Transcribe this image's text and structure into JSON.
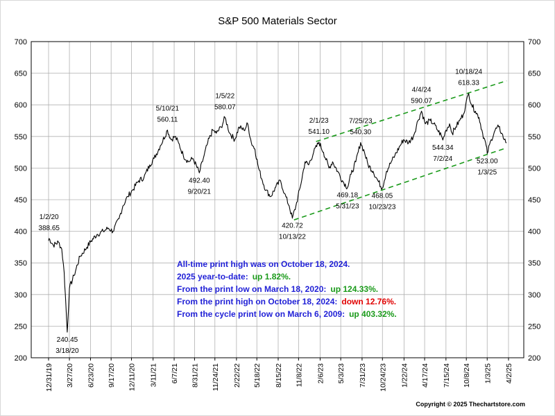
{
  "chart_data": {
    "type": "line",
    "title": "S&P 500 Materials Sector",
    "xlabel": "",
    "ylabel": "",
    "ylim": [
      200,
      700
    ],
    "grid": true,
    "y_ticks": [
      "200",
      "250",
      "300",
      "350",
      "400",
      "450",
      "500",
      "550",
      "600",
      "650",
      "700"
    ],
    "x_tick_labels": [
      "12/31/19",
      "3/27/20",
      "6/23/20",
      "9/17/20",
      "12/11/20",
      "3/11/21",
      "6/7/21",
      "8/31/21",
      "11/24/21",
      "2/22/22",
      "5/18/22",
      "8/15/22",
      "11/8/22",
      "2/6/23",
      "5/3/23",
      "7/31/23",
      "10/24/23",
      "1/22/24",
      "4/17/24",
      "7/15/24",
      "10/8/24",
      "1/3/25",
      "4/2/25"
    ],
    "series": [
      {
        "color": "#000000",
        "x": [
          "2019-12-31",
          "2020-01-02",
          "2020-01-20",
          "2020-02-10",
          "2020-02-24",
          "2020-03-05",
          "2020-03-10",
          "2020-03-18",
          "2020-03-27",
          "2020-04-15",
          "2020-05-10",
          "2020-06-08",
          "2020-06-26",
          "2020-07-20",
          "2020-08-15",
          "2020-09-05",
          "2020-09-25",
          "2020-10-20",
          "2020-11-05",
          "2020-11-25",
          "2020-12-15",
          "2021-01-10",
          "2021-02-01",
          "2021-02-25",
          "2021-03-15",
          "2021-04-10",
          "2021-05-10",
          "2021-05-25",
          "2021-06-10",
          "2021-06-25",
          "2021-07-15",
          "2021-08-05",
          "2021-08-25",
          "2021-09-20",
          "2021-10-10",
          "2021-10-25",
          "2021-11-15",
          "2021-11-30",
          "2021-12-20",
          "2022-01-05",
          "2022-01-25",
          "2022-02-15",
          "2022-03-05",
          "2022-03-25",
          "2022-04-10",
          "2022-04-25",
          "2022-05-10",
          "2022-05-25",
          "2022-06-10",
          "2022-06-25",
          "2022-07-15",
          "2022-08-05",
          "2022-08-25",
          "2022-09-10",
          "2022-09-30",
          "2022-10-13",
          "2022-10-28",
          "2022-11-15",
          "2022-12-05",
          "2022-12-20",
          "2023-01-10",
          "2023-02-01",
          "2023-02-20",
          "2023-03-15",
          "2023-03-30",
          "2023-04-20",
          "2023-05-10",
          "2023-05-31",
          "2023-06-15",
          "2023-07-05",
          "2023-07-25",
          "2023-08-10",
          "2023-08-25",
          "2023-09-15",
          "2023-10-05",
          "2023-10-23",
          "2023-11-10",
          "2023-11-30",
          "2023-12-15",
          "2024-01-05",
          "2024-01-20",
          "2024-02-10",
          "2024-03-01",
          "2024-03-20",
          "2024-04-04",
          "2024-04-20",
          "2024-05-10",
          "2024-05-25",
          "2024-06-10",
          "2024-06-25",
          "2024-07-02",
          "2024-07-15",
          "2024-07-30",
          "2024-08-10",
          "2024-08-25",
          "2024-09-10",
          "2024-09-25",
          "2024-10-05",
          "2024-10-18",
          "2024-10-30",
          "2024-11-15",
          "2024-11-30",
          "2024-12-15",
          "2024-12-30",
          "2025-01-03",
          "2025-01-20",
          "2025-02-05",
          "2025-02-20",
          "2025-03-05",
          "2025-03-15",
          "2025-03-25"
        ],
        "values": [
          385,
          388.65,
          378,
          383,
          372,
          335,
          300,
          240.45,
          310,
          330,
          360,
          375,
          385,
          395,
          400,
          405,
          400,
          420,
          440,
          455,
          465,
          480,
          485,
          505,
          515,
          535,
          560.11,
          545,
          550,
          540,
          520,
          510,
          515,
          492.4,
          520,
          540,
          560,
          555,
          565,
          580.07,
          555,
          545,
          565,
          560,
          570,
          540,
          530,
          500,
          480,
          465,
          455,
          470,
          480,
          460,
          440,
          420.72,
          440,
          470,
          510,
          505,
          525,
          541.1,
          525,
          500,
          510,
          495,
          480,
          469.18,
          490,
          510,
          540.3,
          525,
          505,
          495,
          480,
          468.05,
          495,
          510,
          520,
          535,
          545,
          540,
          550,
          575,
          590.07,
          570,
          575,
          570,
          560,
          552,
          544.34,
          560,
          570,
          555,
          565,
          575,
          585,
          600,
          618.33,
          600,
          590,
          580,
          555,
          535,
          523,
          545,
          560,
          565,
          555,
          545,
          540
        ]
      }
    ],
    "trendlines": [
      {
        "style": "dashed",
        "color": "#1a9a1a",
        "x": [
          "2023-01-20",
          "2025-03-25"
        ],
        "values": [
          542,
          638
        ]
      },
      {
        "style": "dashed",
        "color": "#1a9a1a",
        "x": [
          "2022-10-20",
          "2025-03-25"
        ],
        "values": [
          418,
          532
        ]
      }
    ],
    "annotations": [
      {
        "date_label": "1/2/20",
        "value_label": "388.65",
        "x": "2020-01-02",
        "y": 388.65,
        "place": "above"
      },
      {
        "date_label": "3/18/20",
        "value_label": "240.45",
        "x": "2020-03-18",
        "y": 240.45,
        "place": "below"
      },
      {
        "date_label": "5/10/21",
        "value_label": "560.11",
        "x": "2021-05-10",
        "y": 560.11,
        "place": "above"
      },
      {
        "date_label": "9/20/21",
        "value_label": "492.40",
        "x": "2021-09-20",
        "y": 492.4,
        "place": "below"
      },
      {
        "date_label": "1/5/22",
        "value_label": "580.07",
        "x": "2022-01-05",
        "y": 580.07,
        "place": "above"
      },
      {
        "date_label": "10/13/22",
        "value_label": "420.72",
        "x": "2022-10-13",
        "y": 420.72,
        "place": "below"
      },
      {
        "date_label": "2/1/23",
        "value_label": "541.10",
        "x": "2023-02-01",
        "y": 541.1,
        "place": "above"
      },
      {
        "date_label": "5/31/23",
        "value_label": "469.18",
        "x": "2023-05-31",
        "y": 469.18,
        "place": "below"
      },
      {
        "date_label": "7/25/23",
        "value_label": "540.30",
        "x": "2023-07-25",
        "y": 540.3,
        "place": "above"
      },
      {
        "date_label": "10/23/23",
        "value_label": "468.05",
        "x": "2023-10-23",
        "y": 468.05,
        "place": "below"
      },
      {
        "date_label": "4/4/24",
        "value_label": "590.07",
        "x": "2024-04-04",
        "y": 590.07,
        "place": "above"
      },
      {
        "date_label": "7/2/24",
        "value_label": "544.34",
        "x": "2024-07-02",
        "y": 544.34,
        "place": "below"
      },
      {
        "date_label": "10/18/24",
        "value_label": "618.33",
        "x": "2024-10-18",
        "y": 618.33,
        "place": "above"
      },
      {
        "date_label": "1/3/25",
        "value_label": "523.00",
        "x": "2025-01-03",
        "y": 523.0,
        "place": "below"
      }
    ],
    "notes": [
      {
        "text": "All-time print high was on October 18, 2024.",
        "value": "",
        "value_color": ""
      },
      {
        "text": "2025 year-to-date:",
        "value": "up 1.82%.",
        "value_color": "#1a9a1a"
      },
      {
        "text": "From the print low on March 18, 2020:",
        "value": "up 124.33%.",
        "value_color": "#1a9a1a"
      },
      {
        "text": "From the print high on October 18, 2024:",
        "value": "down 12.76%.",
        "value_color": "#e00000"
      },
      {
        "text": "From the cycle print low on March 6, 2009:",
        "value": "up 403.32%.",
        "value_color": "#1a9a1a"
      }
    ],
    "copyright": "Copyright © 2025 Thechartstore.com"
  }
}
